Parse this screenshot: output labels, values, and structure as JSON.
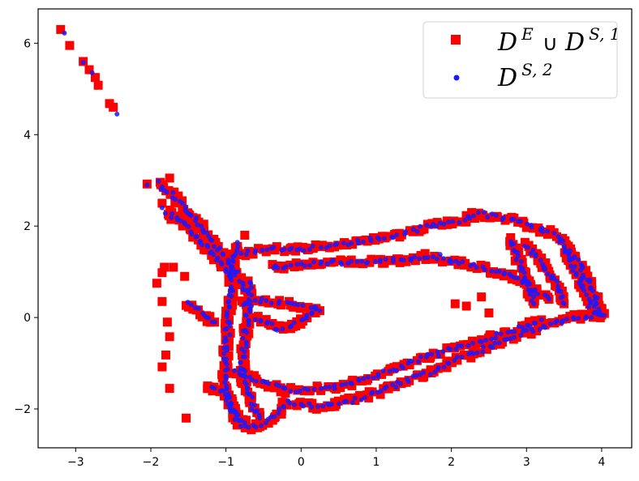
{
  "chart_data": {
    "type": "scatter",
    "title": "",
    "xlabel": "",
    "ylabel": "",
    "xlim": [
      -3.5,
      4.4
    ],
    "ylim": [
      -2.85,
      6.75
    ],
    "xticks": [
      -3,
      -2,
      -1,
      0,
      1,
      2,
      3,
      4
    ],
    "yticks": [
      -2,
      0,
      2,
      4,
      6
    ],
    "xtick_labels": [
      "−3",
      "−2",
      "−1",
      "0",
      "1",
      "2",
      "3",
      "4"
    ],
    "ytick_labels": [
      "−2",
      "0",
      "2",
      "4",
      "6"
    ],
    "grid": false,
    "legend": {
      "placement": "top-right",
      "entries": [
        {
          "base1": "D",
          "sup1": "E",
          "op": "∪",
          "base2": "D",
          "sup2": "S, 1"
        },
        {
          "base1": "D",
          "sup1": "S, 2",
          "op": "",
          "base2": "",
          "sup2": ""
        }
      ]
    },
    "series": [
      {
        "marker": "square",
        "color": "#ff0000",
        "points": [
          [
            -3.2,
            6.3
          ],
          [
            -3.08,
            5.95
          ],
          [
            -2.9,
            5.6
          ],
          [
            -2.82,
            5.42
          ],
          [
            -2.74,
            5.25
          ],
          [
            -2.7,
            5.08
          ],
          [
            -2.55,
            4.68
          ],
          [
            -2.5,
            4.6
          ],
          [
            -2.05,
            2.92
          ],
          [
            -1.75,
            3.05
          ],
          [
            -1.85,
            2.5
          ],
          [
            -1.72,
            2.3
          ],
          [
            -1.85,
            0.98
          ],
          [
            -1.82,
            1.1
          ],
          [
            -1.92,
            0.75
          ],
          [
            -1.7,
            1.1
          ],
          [
            -1.85,
            0.35
          ],
          [
            -1.78,
            -0.1
          ],
          [
            -1.75,
            -0.42
          ],
          [
            -1.8,
            -0.82
          ],
          [
            -1.85,
            -1.08
          ],
          [
            -1.75,
            -1.55
          ],
          [
            -1.53,
            -2.2
          ],
          [
            -1.55,
            0.9
          ],
          [
            -0.75,
            1.8
          ],
          [
            1.65,
            1.4
          ],
          [
            2.2,
            0.25
          ],
          [
            2.5,
            0.1
          ],
          [
            2.4,
            0.45
          ],
          [
            2.05,
            0.3
          ],
          [
            3.1,
            1.4
          ]
        ],
        "paths": [
          [
            [
              -1.2,
              -1.55
            ],
            [
              -1.0,
              -1.65
            ],
            [
              -0.92,
              -2.0
            ],
            [
              -0.85,
              -2.3
            ],
            [
              -0.7,
              -2.4
            ],
            [
              -0.5,
              -2.35
            ],
            [
              -0.3,
              -2.1
            ],
            [
              -0.2,
              -1.85
            ],
            [
              0.2,
              -1.95
            ],
            [
              0.5,
              -1.9
            ],
            [
              0.9,
              -1.7
            ],
            [
              1.3,
              -1.45
            ],
            [
              1.7,
              -1.2
            ],
            [
              2.1,
              -0.9
            ],
            [
              2.5,
              -0.65
            ],
            [
              2.9,
              -0.38
            ],
            [
              3.3,
              -0.15
            ],
            [
              3.6,
              0.0
            ],
            [
              4.0,
              0.05
            ]
          ],
          [
            [
              4.0,
              0.05
            ],
            [
              3.9,
              0.5
            ],
            [
              3.7,
              1.2
            ],
            [
              3.4,
              1.8
            ],
            [
              3.0,
              2.05
            ],
            [
              2.6,
              2.2
            ],
            [
              2.35,
              2.28
            ],
            [
              2.1,
              2.1
            ],
            [
              1.7,
              2.0
            ],
            [
              1.3,
              1.8
            ],
            [
              0.9,
              1.7
            ],
            [
              0.5,
              1.6
            ],
            [
              0.0,
              1.5
            ],
            [
              -0.4,
              1.5
            ],
            [
              -0.8,
              1.4
            ]
          ],
          [
            [
              -0.4,
              1.1
            ],
            [
              0.0,
              1.15
            ],
            [
              0.4,
              1.2
            ],
            [
              0.8,
              1.22
            ],
            [
              1.2,
              1.25
            ],
            [
              1.6,
              1.3
            ],
            [
              2.0,
              1.25
            ],
            [
              2.4,
              1.1
            ],
            [
              2.8,
              0.9
            ],
            [
              3.1,
              0.6
            ],
            [
              3.3,
              0.4
            ]
          ],
          [
            [
              -0.9,
              -1.2
            ],
            [
              -0.7,
              -1.3
            ],
            [
              -0.2,
              -1.6
            ],
            [
              0.3,
              -1.55
            ],
            [
              0.8,
              -1.4
            ],
            [
              1.2,
              -1.15
            ],
            [
              1.6,
              -0.9
            ],
            [
              2.0,
              -0.68
            ],
            [
              2.4,
              -0.5
            ],
            [
              2.8,
              -0.3
            ],
            [
              3.2,
              -0.05
            ]
          ],
          [
            [
              -0.85,
              1.6
            ],
            [
              -0.9,
              1.3
            ],
            [
              -0.93,
              1.0
            ],
            [
              -0.92,
              0.6
            ],
            [
              -0.95,
              0.2
            ],
            [
              -0.98,
              -0.3
            ],
            [
              -1.0,
              -0.8
            ],
            [
              -1.02,
              -1.3
            ],
            [
              -0.98,
              -1.75
            ],
            [
              -0.9,
              -2.1
            ],
            [
              -0.75,
              -2.3
            ]
          ],
          [
            [
              -0.7,
              0.8
            ],
            [
              -0.68,
              0.4
            ],
            [
              -0.72,
              0.0
            ],
            [
              -0.75,
              -0.5
            ],
            [
              -0.78,
              -1.0
            ],
            [
              -0.75,
              -1.5
            ],
            [
              -0.65,
              -1.9
            ],
            [
              -0.55,
              -2.2
            ]
          ],
          [
            [
              -1.9,
              2.95
            ],
            [
              -1.6,
              2.5
            ],
            [
              -1.4,
              2.1
            ],
            [
              -1.2,
              1.7
            ],
            [
              -1.0,
              1.3
            ],
            [
              -0.85,
              0.9
            ],
            [
              -0.75,
              0.6
            ]
          ],
          [
            [
              -1.78,
              2.3
            ],
            [
              -1.55,
              2.05
            ],
            [
              -1.35,
              1.7
            ],
            [
              -1.15,
              1.35
            ],
            [
              -0.95,
              1.0
            ]
          ],
          [
            [
              -1.5,
              0.3
            ],
            [
              -1.3,
              0.05
            ],
            [
              -1.15,
              -0.1
            ]
          ],
          [
            [
              -0.8,
              0.3
            ],
            [
              -0.5,
              0.4
            ],
            [
              -0.2,
              0.3
            ],
            [
              0.1,
              0.2
            ],
            [
              0.25,
              0.15
            ]
          ],
          [
            [
              -0.6,
              0.0
            ],
            [
              -0.3,
              -0.25
            ],
            [
              -0.1,
              -0.2
            ],
            [
              0.1,
              0.05
            ],
            [
              0.2,
              0.2
            ]
          ],
          [
            [
              -1.25,
              -1.5
            ],
            [
              -1.05,
              -1.6
            ]
          ],
          [
            [
              3.0,
              1.6
            ],
            [
              3.2,
              1.2
            ],
            [
              3.4,
              0.7
            ],
            [
              3.5,
              0.3
            ]
          ],
          [
            [
              2.8,
              1.7
            ],
            [
              2.9,
              1.2
            ],
            [
              3.0,
              0.8
            ],
            [
              3.1,
              0.3
            ]
          ],
          [
            [
              3.5,
              1.5
            ],
            [
              3.7,
              0.9
            ],
            [
              3.8,
              0.5
            ],
            [
              3.9,
              0.1
            ]
          ]
        ]
      },
      {
        "marker": "circle",
        "color": "#1a1aff",
        "points": [
          [
            -3.15,
            6.22
          ],
          [
            -2.9,
            5.58
          ],
          [
            -2.78,
            5.35
          ],
          [
            -2.45,
            4.45
          ],
          [
            -1.85,
            2.4
          ],
          [
            -2.05,
            2.9
          ],
          [
            1.85,
            1.38
          ],
          [
            2.0,
            1.2
          ],
          [
            2.7,
            0.95
          ]
        ],
        "paths": [
          [
            [
              -1.2,
              -1.55
            ],
            [
              -1.0,
              -1.65
            ],
            [
              -0.92,
              -2.0
            ],
            [
              -0.85,
              -2.3
            ],
            [
              -0.7,
              -2.4
            ],
            [
              -0.5,
              -2.35
            ],
            [
              -0.3,
              -2.1
            ],
            [
              -0.2,
              -1.85
            ],
            [
              0.2,
              -1.95
            ],
            [
              0.5,
              -1.9
            ],
            [
              0.9,
              -1.7
            ],
            [
              1.3,
              -1.45
            ],
            [
              1.7,
              -1.2
            ],
            [
              2.1,
              -0.9
            ],
            [
              2.5,
              -0.65
            ],
            [
              2.9,
              -0.38
            ],
            [
              3.3,
              -0.15
            ],
            [
              3.6,
              0.0
            ],
            [
              4.0,
              0.05
            ]
          ],
          [
            [
              4.0,
              0.05
            ],
            [
              3.9,
              0.5
            ],
            [
              3.7,
              1.2
            ],
            [
              3.4,
              1.8
            ],
            [
              3.0,
              2.05
            ],
            [
              2.6,
              2.2
            ],
            [
              2.35,
              2.28
            ],
            [
              2.1,
              2.1
            ],
            [
              1.7,
              2.0
            ],
            [
              1.3,
              1.8
            ],
            [
              0.9,
              1.7
            ],
            [
              0.5,
              1.6
            ],
            [
              0.0,
              1.5
            ],
            [
              -0.4,
              1.5
            ],
            [
              -0.8,
              1.4
            ]
          ],
          [
            [
              -0.4,
              1.1
            ],
            [
              0.0,
              1.15
            ],
            [
              0.4,
              1.2
            ],
            [
              0.8,
              1.22
            ],
            [
              1.2,
              1.25
            ],
            [
              1.6,
              1.3
            ],
            [
              2.0,
              1.25
            ],
            [
              2.4,
              1.1
            ],
            [
              2.8,
              0.9
            ],
            [
              3.1,
              0.6
            ],
            [
              3.3,
              0.4
            ]
          ],
          [
            [
              -0.9,
              -1.2
            ],
            [
              -0.7,
              -1.3
            ],
            [
              -0.2,
              -1.6
            ],
            [
              0.3,
              -1.55
            ],
            [
              0.8,
              -1.4
            ],
            [
              1.2,
              -1.15
            ],
            [
              1.6,
              -0.9
            ],
            [
              2.0,
              -0.68
            ],
            [
              2.4,
              -0.5
            ],
            [
              2.8,
              -0.3
            ],
            [
              3.2,
              -0.05
            ]
          ],
          [
            [
              -0.85,
              1.6
            ],
            [
              -0.9,
              1.3
            ],
            [
              -0.93,
              1.0
            ],
            [
              -0.92,
              0.6
            ],
            [
              -0.95,
              0.2
            ],
            [
              -0.98,
              -0.3
            ],
            [
              -1.0,
              -0.8
            ],
            [
              -1.02,
              -1.3
            ],
            [
              -0.98,
              -1.75
            ],
            [
              -0.9,
              -2.1
            ],
            [
              -0.75,
              -2.3
            ]
          ],
          [
            [
              -0.7,
              0.8
            ],
            [
              -0.68,
              0.4
            ],
            [
              -0.72,
              0.0
            ],
            [
              -0.75,
              -0.5
            ],
            [
              -0.78,
              -1.0
            ],
            [
              -0.75,
              -1.5
            ],
            [
              -0.65,
              -1.9
            ],
            [
              -0.55,
              -2.2
            ]
          ],
          [
            [
              -1.9,
              2.95
            ],
            [
              -1.6,
              2.5
            ],
            [
              -1.4,
              2.1
            ],
            [
              -1.2,
              1.7
            ],
            [
              -1.0,
              1.3
            ],
            [
              -0.85,
              0.9
            ],
            [
              -0.75,
              0.6
            ]
          ],
          [
            [
              -1.78,
              2.3
            ],
            [
              -1.55,
              2.05
            ],
            [
              -1.35,
              1.7
            ],
            [
              -1.15,
              1.35
            ],
            [
              -0.95,
              1.0
            ]
          ],
          [
            [
              -1.5,
              0.3
            ],
            [
              -1.3,
              0.05
            ],
            [
              -1.15,
              -0.1
            ]
          ],
          [
            [
              -0.8,
              0.3
            ],
            [
              -0.5,
              0.4
            ],
            [
              -0.2,
              0.3
            ],
            [
              0.1,
              0.2
            ],
            [
              0.25,
              0.15
            ]
          ],
          [
            [
              -0.6,
              0.0
            ],
            [
              -0.3,
              -0.25
            ],
            [
              -0.1,
              -0.2
            ],
            [
              0.1,
              0.05
            ],
            [
              0.2,
              0.2
            ]
          ],
          [
            [
              3.0,
              1.6
            ],
            [
              3.2,
              1.2
            ],
            [
              3.4,
              0.7
            ],
            [
              3.5,
              0.3
            ]
          ],
          [
            [
              2.8,
              1.7
            ],
            [
              2.9,
              1.2
            ],
            [
              3.0,
              0.8
            ],
            [
              3.1,
              0.3
            ]
          ],
          [
            [
              3.5,
              1.5
            ],
            [
              3.7,
              0.9
            ],
            [
              3.8,
              0.5
            ],
            [
              3.9,
              0.1
            ]
          ]
        ]
      }
    ]
  }
}
